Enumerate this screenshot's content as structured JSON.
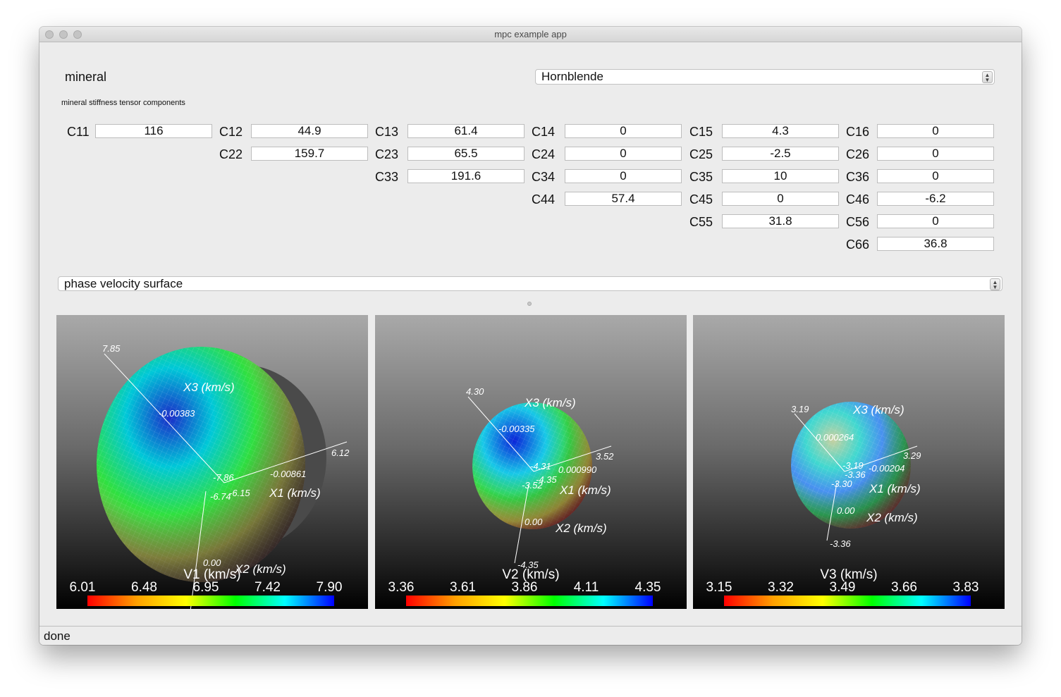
{
  "window": {
    "title": "mpc example app"
  },
  "mineral": {
    "label": "mineral",
    "selected": "Hornblende"
  },
  "tensor": {
    "caption": "mineral stiffness tensor components",
    "components": [
      {
        "name": "C11",
        "value": "116"
      },
      {
        "name": "C12",
        "value": "44.9"
      },
      {
        "name": "C13",
        "value": "61.4"
      },
      {
        "name": "C14",
        "value": "0"
      },
      {
        "name": "C15",
        "value": "4.3"
      },
      {
        "name": "C16",
        "value": "0"
      },
      {
        "name": "C22",
        "value": "159.7"
      },
      {
        "name": "C23",
        "value": "65.5"
      },
      {
        "name": "C24",
        "value": "0"
      },
      {
        "name": "C25",
        "value": "-2.5"
      },
      {
        "name": "C26",
        "value": "0"
      },
      {
        "name": "C33",
        "value": "191.6"
      },
      {
        "name": "C34",
        "value": "0"
      },
      {
        "name": "C35",
        "value": "10"
      },
      {
        "name": "C36",
        "value": "0"
      },
      {
        "name": "C44",
        "value": "57.4"
      },
      {
        "name": "C45",
        "value": "0"
      },
      {
        "name": "C46",
        "value": "-6.2"
      },
      {
        "name": "C55",
        "value": "31.8"
      },
      {
        "name": "C56",
        "value": "0"
      },
      {
        "name": "C66",
        "value": "36.8"
      }
    ]
  },
  "plot_type": {
    "selected": "phase velocity surface"
  },
  "plots": [
    {
      "scalar_title": "V1 (km/s)",
      "colorbar_ticks": [
        "6.01",
        "6.48",
        "6.95",
        "7.42",
        "7.90"
      ],
      "axis_titles": [
        "X3 (km/s)",
        "X1 (km/s)",
        "X2 (km/s)"
      ],
      "axis_labels": [
        "7.85",
        "-0.00383",
        "-7.86",
        "6.12",
        "-0.00861",
        "-6.15",
        "-6.74",
        "0.00"
      ]
    },
    {
      "scalar_title": "V2 (km/s)",
      "colorbar_ticks": [
        "3.36",
        "3.61",
        "3.86",
        "4.11",
        "4.35"
      ],
      "axis_titles": [
        "X3 (km/s)",
        "X1 (km/s)",
        "X2 (km/s)"
      ],
      "axis_labels": [
        "4.30",
        "-0.00335",
        "-4.31",
        "3.52",
        "0.000990",
        "-4.35",
        "-3.52",
        "0.00",
        "-4.35"
      ]
    },
    {
      "scalar_title": "V3 (km/s)",
      "colorbar_ticks": [
        "3.15",
        "3.32",
        "3.49",
        "3.66",
        "3.83"
      ],
      "axis_titles": [
        "X3 (km/s)",
        "X1 (km/s)",
        "X2 (km/s)"
      ],
      "axis_labels": [
        "3.19",
        "0.000264",
        "-3.19",
        "3.29",
        "-0.00204",
        "-3.36",
        "-3.30",
        "0.00",
        "-3.36"
      ]
    }
  ],
  "colormap": [
    "#ff0000",
    "#ffa000",
    "#ffff00",
    "#00ff00",
    "#00ffff",
    "#0000ff"
  ],
  "status": {
    "text": "done"
  }
}
